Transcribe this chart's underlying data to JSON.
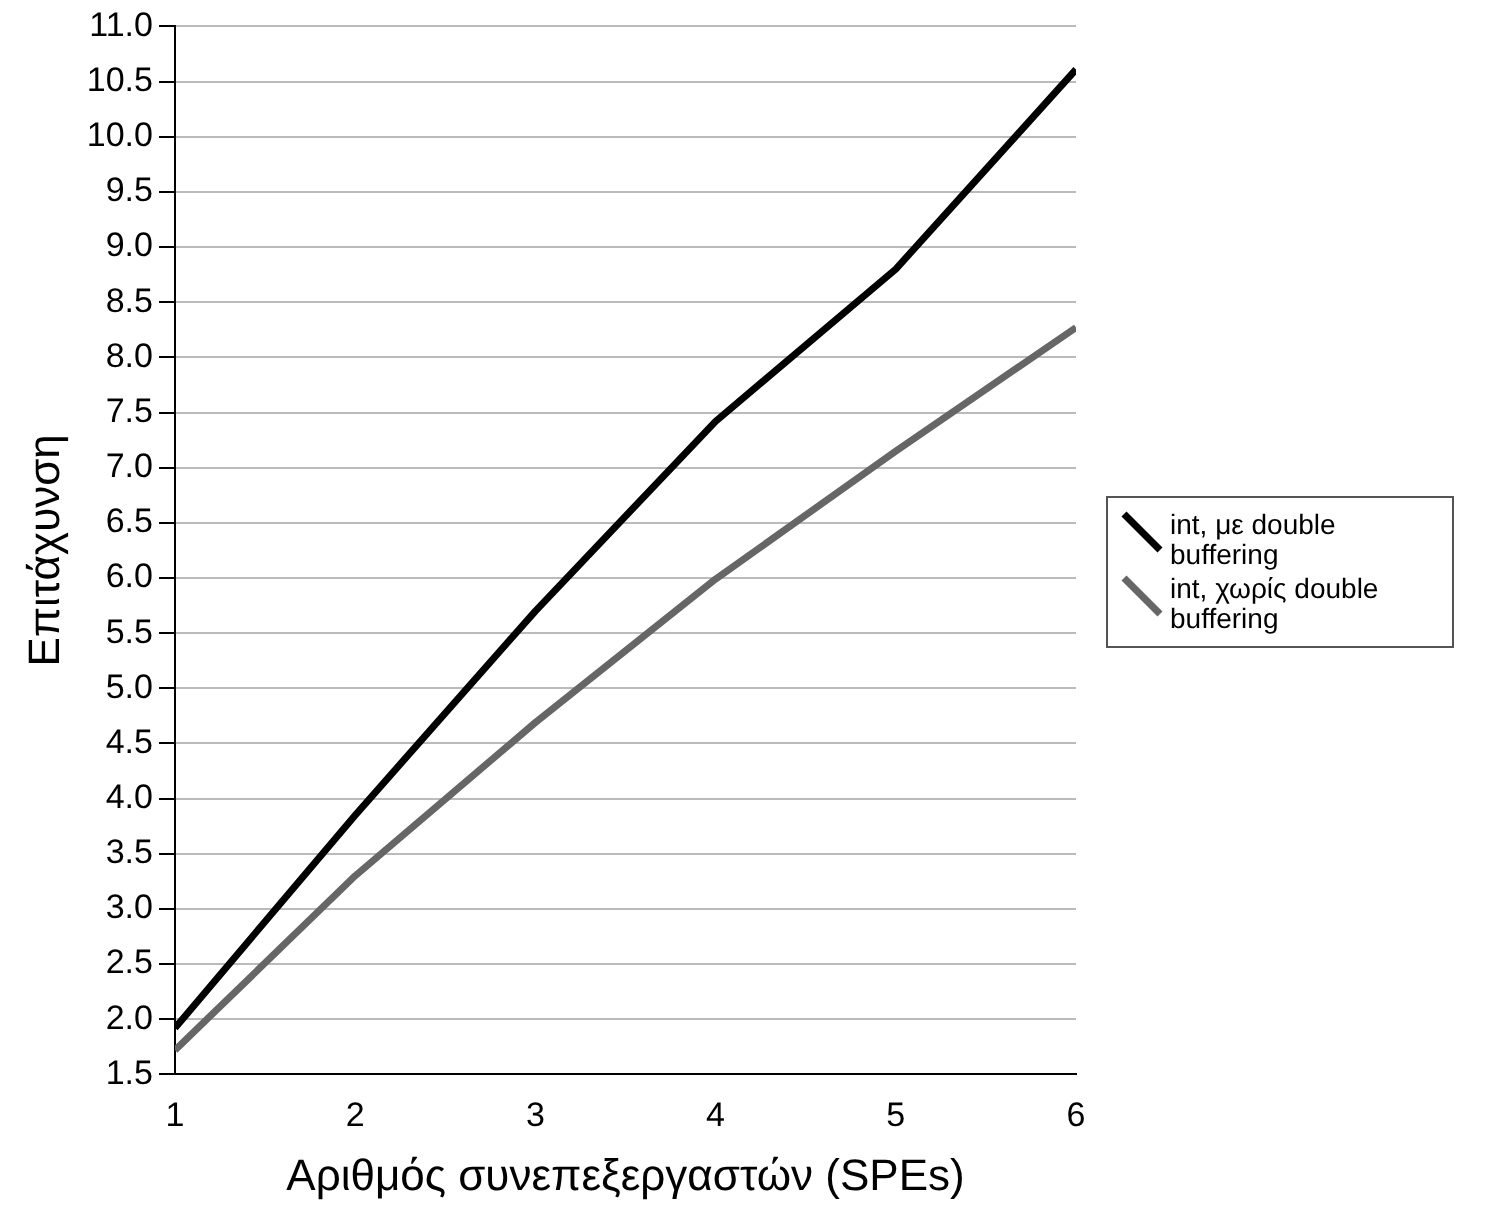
{
  "chart_data": {
    "type": "line",
    "xlabel": "Αριθμός συνεπεξεργαστών (SPEs)",
    "ylabel": "Επιτάχυνση",
    "x": [
      1,
      2,
      3,
      4,
      5,
      6
    ],
    "xlim": [
      1,
      6
    ],
    "xticks": [
      1,
      2,
      3,
      4,
      5,
      6
    ],
    "ylim": [
      1.5,
      11
    ],
    "yticks": [
      {
        "value": 1.5,
        "label": "1.5"
      },
      {
        "value": 2,
        "label": "2.0"
      },
      {
        "value": 2.5,
        "label": "2.5"
      },
      {
        "value": 3,
        "label": "3.0"
      },
      {
        "value": 3.5,
        "label": "3.5"
      },
      {
        "value": 4,
        "label": "4.0"
      },
      {
        "value": 4.5,
        "label": "4.5"
      },
      {
        "value": 5,
        "label": "5.0"
      },
      {
        "value": 5.5,
        "label": "5.5"
      },
      {
        "value": 6,
        "label": "6.0"
      },
      {
        "value": 6.5,
        "label": "6.5"
      },
      {
        "value": 7,
        "label": "7.0"
      },
      {
        "value": 7.5,
        "label": "7.5"
      },
      {
        "value": 8,
        "label": "8.0"
      },
      {
        "value": 8.5,
        "label": "8.5"
      },
      {
        "value": 9,
        "label": "9.0"
      },
      {
        "value": 9.5,
        "label": "9.5"
      },
      {
        "value": 10,
        "label": "10.0"
      },
      {
        "value": 10.5,
        "label": "10.5"
      },
      {
        "value": 11,
        "label": "11.0"
      }
    ],
    "grid": "y",
    "legend": "right",
    "marker": "none",
    "line_style": "solid",
    "series": [
      {
        "name": "int, με double buffering",
        "color": "#000000",
        "values": [
          1.92,
          3.85,
          5.7,
          7.42,
          8.8,
          10.61
        ]
      },
      {
        "name": "int, χωρίς double buffering",
        "color": "#666666",
        "values": [
          1.72,
          3.3,
          4.69,
          5.99,
          7.15,
          8.27
        ]
      }
    ]
  }
}
